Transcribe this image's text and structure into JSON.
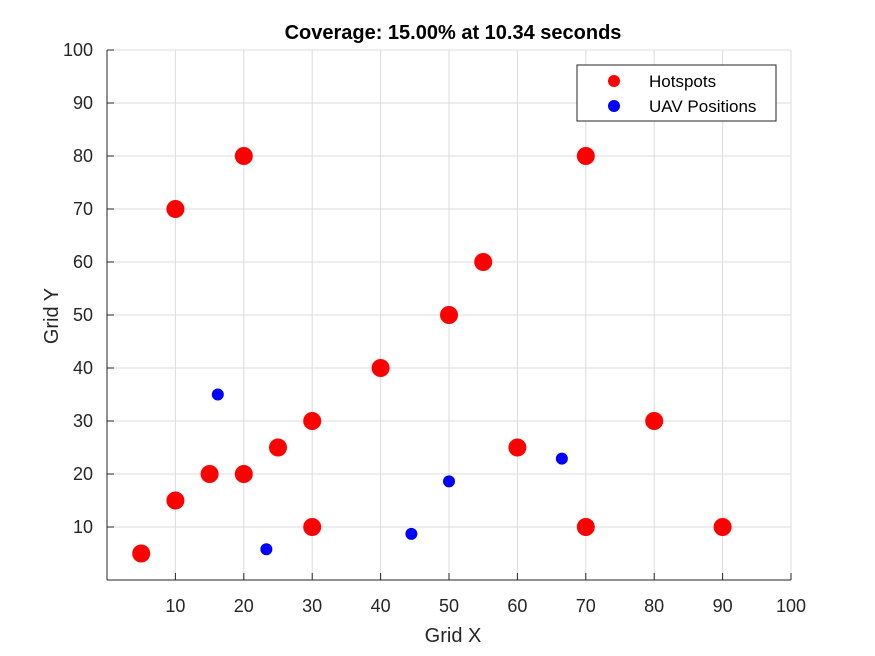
{
  "chart_data": {
    "type": "scatter",
    "title": "Coverage: 15.00% at 10.34 seconds",
    "xlabel": "Grid X",
    "ylabel": "Grid Y",
    "xlim": [
      0,
      100
    ],
    "ylim": [
      0,
      100
    ],
    "xticks": [
      10,
      20,
      30,
      40,
      50,
      60,
      70,
      80,
      90,
      100
    ],
    "yticks": [
      10,
      20,
      30,
      40,
      50,
      60,
      70,
      80,
      90,
      100
    ],
    "grid": true,
    "legend_position": "top-right",
    "series": [
      {
        "name": "Hotspots",
        "color": "#ff0000",
        "marker": "large-circle",
        "x": [
          5,
          10,
          10,
          15,
          20,
          20,
          25,
          30,
          30,
          40,
          50,
          55,
          60,
          70,
          70,
          80,
          90
        ],
        "y": [
          5,
          15,
          70,
          20,
          20,
          80,
          25,
          10,
          30,
          40,
          50,
          60,
          25,
          10,
          80,
          30,
          10
        ]
      },
      {
        "name": "UAV Positions",
        "color": "#0000ff",
        "marker": "small-circle",
        "x": [
          16.2,
          23.3,
          44.5,
          50.0,
          66.5
        ],
        "y": [
          35.0,
          5.8,
          8.7,
          18.6,
          22.9
        ]
      }
    ]
  }
}
